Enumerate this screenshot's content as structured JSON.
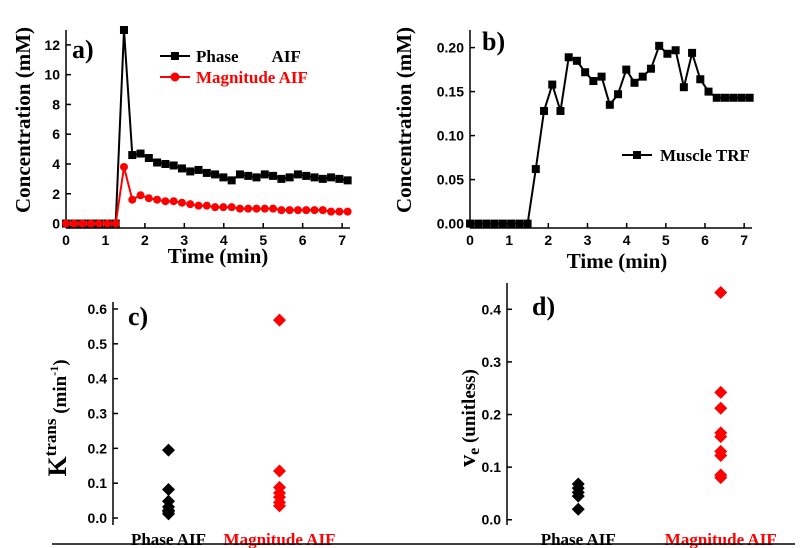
{
  "colors": {
    "black": "#000000",
    "red": "#ff0000"
  },
  "chart_data": [
    {
      "panel": "a)",
      "type": "line",
      "xlabel": "Time (min)",
      "ylabel": "Concentration (mM)",
      "xlim": [
        0,
        7.2
      ],
      "ylim": [
        -0.3,
        13
      ],
      "xticks": [
        0,
        1,
        2,
        3,
        4,
        5,
        6,
        7
      ],
      "yticks": [
        0,
        2,
        4,
        6,
        8,
        10,
        12
      ],
      "legend": {
        "placement": "top-right",
        "entries": [
          "Phase        AIF",
          "Magnitude AIF"
        ]
      },
      "series": [
        {
          "name": "Phase AIF",
          "color": "#000000",
          "marker": "square",
          "x": [
            0,
            0.21,
            0.42,
            0.63,
            0.84,
            1.05,
            1.26,
            1.47,
            1.68,
            1.89,
            2.1,
            2.31,
            2.52,
            2.73,
            2.94,
            3.15,
            3.36,
            3.57,
            3.78,
            3.99,
            4.2,
            4.41,
            4.62,
            4.83,
            5.04,
            5.25,
            5.46,
            5.67,
            5.88,
            6.09,
            6.3,
            6.51,
            6.72,
            6.93,
            7.14
          ],
          "y": [
            0,
            0,
            0,
            0,
            0,
            0,
            0,
            13.0,
            4.6,
            4.7,
            4.4,
            4.1,
            4.0,
            3.9,
            3.7,
            3.5,
            3.6,
            3.4,
            3.3,
            3.1,
            2.9,
            3.3,
            3.2,
            3.1,
            3.3,
            3.2,
            3.0,
            3.1,
            3.3,
            3.2,
            3.1,
            3.0,
            3.1,
            3.0,
            2.9
          ]
        },
        {
          "name": "Magnitude AIF",
          "color": "#ff0000",
          "marker": "circle",
          "x": [
            0,
            0.21,
            0.42,
            0.63,
            0.84,
            1.05,
            1.26,
            1.47,
            1.68,
            1.89,
            2.1,
            2.31,
            2.52,
            2.73,
            2.94,
            3.15,
            3.36,
            3.57,
            3.78,
            3.99,
            4.2,
            4.41,
            4.62,
            4.83,
            5.04,
            5.25,
            5.46,
            5.67,
            5.88,
            6.09,
            6.3,
            6.51,
            6.72,
            6.93,
            7.14
          ],
          "y": [
            0,
            0,
            0,
            0,
            0,
            0,
            0,
            3.8,
            1.6,
            1.9,
            1.7,
            1.6,
            1.5,
            1.5,
            1.4,
            1.3,
            1.2,
            1.2,
            1.1,
            1.1,
            1.1,
            1.0,
            1.0,
            1.0,
            1.0,
            1.0,
            0.9,
            0.9,
            0.9,
            0.9,
            0.9,
            0.9,
            0.8,
            0.8,
            0.8
          ]
        }
      ]
    },
    {
      "panel": "b)",
      "type": "line",
      "xlabel": "Time (min)",
      "ylabel": "Concentration (mM)",
      "xlim": [
        0,
        7.2
      ],
      "ylim": [
        -0.005,
        0.22
      ],
      "xticks": [
        0,
        1,
        2,
        3,
        4,
        5,
        6,
        7
      ],
      "yticks": [
        0.0,
        0.05,
        0.1,
        0.15,
        0.2
      ],
      "ytick_decimals": 2,
      "legend": {
        "placement": "right",
        "entries": [
          "Muscle TRF"
        ]
      },
      "series": [
        {
          "name": "Muscle TRF",
          "color": "#000000",
          "marker": "square",
          "x": [
            0,
            0.21,
            0.42,
            0.63,
            0.84,
            1.05,
            1.26,
            1.47,
            1.68,
            1.89,
            2.1,
            2.31,
            2.52,
            2.73,
            2.94,
            3.15,
            3.36,
            3.57,
            3.78,
            3.99,
            4.2,
            4.41,
            4.62,
            4.83,
            5.04,
            5.25,
            5.46,
            5.67,
            5.88,
            6.09,
            6.3,
            6.51,
            6.72,
            6.93,
            7.14
          ],
          "y": [
            0,
            0,
            0,
            0,
            0,
            0,
            0,
            0,
            0.062,
            0.128,
            0.158,
            0.128,
            0.189,
            0.185,
            0.172,
            0.162,
            0.167,
            0.135,
            0.147,
            0.175,
            0.16,
            0.167,
            0.176,
            0.202,
            0.193,
            0.197,
            0.155,
            0.194,
            0.164,
            0.15,
            0.143,
            0.143,
            0.143,
            0.143,
            0.143
          ]
        }
      ]
    },
    {
      "panel": "c)",
      "type": "scatter",
      "ylabel_main": "K",
      "ylabel_sup": "trans",
      "ylabel_units": "(min",
      "ylabel_units_sup": "-1",
      "ylabel_close": ")",
      "ylim": [
        -0.02,
        0.62
      ],
      "yticks": [
        0.0,
        0.1,
        0.2,
        0.3,
        0.4,
        0.5,
        0.6
      ],
      "ytick_decimals": 1,
      "categories": [
        "Phase AIF",
        "Magnitude AIF"
      ],
      "series": [
        {
          "name": "Phase AIF",
          "color": "#000000",
          "marker": "diamond",
          "values": [
            0.195,
            0.082,
            0.048,
            0.032,
            0.022,
            0.018,
            0.012
          ]
        },
        {
          "name": "Magnitude AIF",
          "color": "#ff0000",
          "marker": "diamond",
          "values": [
            0.568,
            0.135,
            0.088,
            0.072,
            0.06,
            0.045,
            0.035
          ]
        }
      ]
    },
    {
      "panel": "d)",
      "type": "scatter",
      "ylabel_main": "v",
      "ylabel_sub": "e",
      "ylabel_units": "(unitless)",
      "ylim": [
        -0.01,
        0.45
      ],
      "yticks": [
        0.0,
        0.1,
        0.2,
        0.3,
        0.4
      ],
      "ytick_decimals": 1,
      "categories": [
        "Phase AIF",
        "Magnitude AIF"
      ],
      "series": [
        {
          "name": "Phase AIF",
          "color": "#000000",
          "marker": "diamond",
          "values": [
            0.068,
            0.06,
            0.052,
            0.045,
            0.02
          ]
        },
        {
          "name": "Magnitude AIF",
          "color": "#ff0000",
          "marker": "diamond",
          "values": [
            0.432,
            0.242,
            0.212,
            0.165,
            0.158,
            0.13,
            0.122,
            0.085,
            0.08
          ]
        }
      ]
    }
  ]
}
